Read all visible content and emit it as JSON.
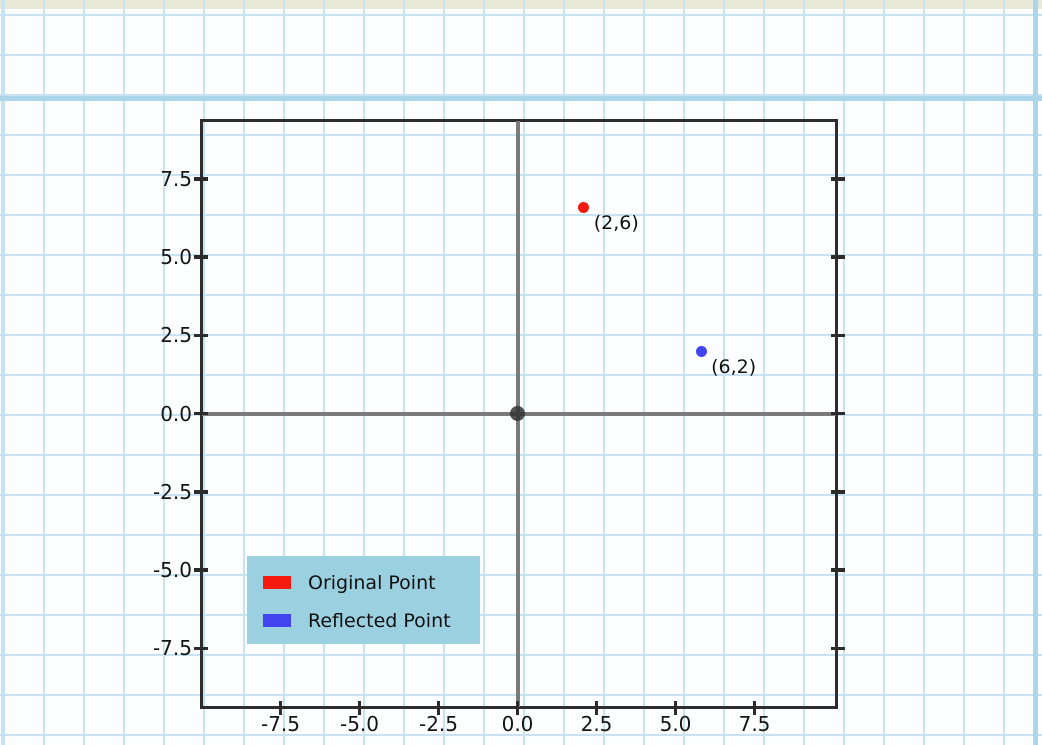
{
  "page": {
    "top_strip_color": "#e9e9d8",
    "paper_line_color": "#c7e2f1",
    "paper_accent_color": "#abd5e9",
    "paper_bg_color": "#fcfdff"
  },
  "chart_data": {
    "type": "scatter",
    "title": "",
    "xlabel": "",
    "ylabel": "",
    "xlim": [
      -10.1,
      10.1
    ],
    "ylim": [
      -9.4,
      9.4
    ],
    "grid": "graph-paper page background; no in-axes gridlines",
    "axes": {
      "frame_color": "#2d2d2d",
      "zero_line_color": "#7a7a7a",
      "origin_marker_color": "#454545",
      "ticks_on": [
        "left",
        "bottom",
        "right"
      ]
    },
    "x_tick_values": [
      -7.5,
      -5.0,
      -2.5,
      0.0,
      2.5,
      5.0,
      7.5
    ],
    "x_tick_labels": [
      "-7.5",
      "-5.0",
      "-2.5",
      "0.0",
      "2.5",
      "5.0",
      "7.5"
    ],
    "y_tick_values": [
      7.5,
      5.0,
      2.5,
      0.0,
      -2.5,
      -5.0,
      -7.5
    ],
    "y_tick_labels": [
      "7.5",
      "5.0",
      "2.5",
      "0.0",
      "-2.5",
      "-5.0",
      "-7.5"
    ],
    "series": [
      {
        "name": "Original Point",
        "color": "#f6190d",
        "points": [
          {
            "x": 2,
            "y": 6,
            "label": "(2,6)"
          }
        ]
      },
      {
        "name": "Reflected Point",
        "color": "#4245ef",
        "points": [
          {
            "x": 6,
            "y": 2,
            "label": "(6,2)"
          }
        ]
      }
    ],
    "legend": {
      "position": "lower left",
      "background": "#9bd0e1",
      "entries": [
        {
          "label": "Original Point",
          "color": "#f6190d"
        },
        {
          "label": "Reflected Point",
          "color": "#4245ef"
        }
      ]
    }
  }
}
